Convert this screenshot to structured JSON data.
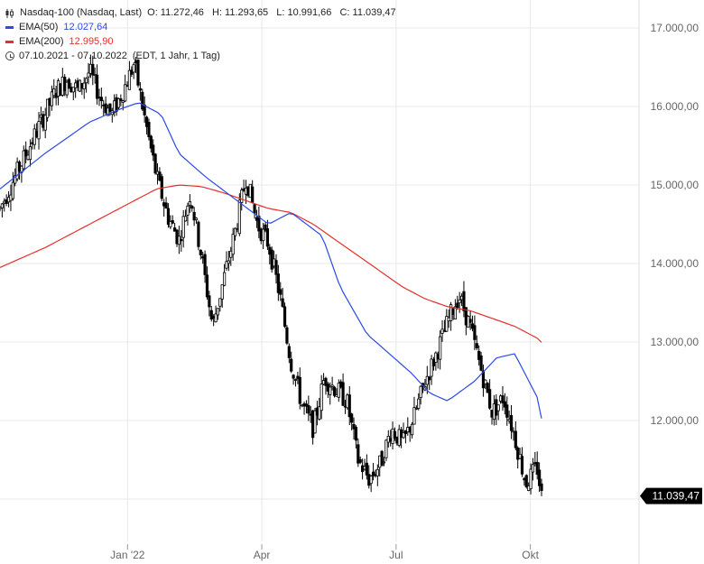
{
  "legend": {
    "title": "Nasdaq-100 (Nasdaq, Last)",
    "open": "O: 11.272,46",
    "high": "H: 11.293,65",
    "low": "L: 10.991,66",
    "close": "C: 11.039,47",
    "ema50_label": "EMA(50)",
    "ema50_value": "12.027,64",
    "ema200_label": "EMA(200)",
    "ema200_value": "12.995,90",
    "range": "07.10.2021 - 07.10.2022",
    "range_info": "(EDT, 1 Jahr, 1 Tag)"
  },
  "colors": {
    "ema50": "#2b4ae6",
    "ema200": "#e4302b",
    "candle": "#000000",
    "grid": "#e8e8e8",
    "badge": "#000000"
  },
  "chart_data": {
    "type": "line",
    "title": "Nasdaq-100 (Nasdaq, Last)",
    "x_ticks": [
      "Jan '22",
      "Apr",
      "Jul",
      "Okt"
    ],
    "x_tick_months": [
      3,
      6,
      9,
      12
    ],
    "y_ticks": [
      11000,
      12000,
      13000,
      14000,
      15000,
      16000,
      17000
    ],
    "y_tick_labels": [
      "11.000,00",
      "12.000,00",
      "13.000,00",
      "14.000,00",
      "15.000,00",
      "16.000,00",
      "17.000,00"
    ],
    "ylim": [
      10650,
      17200
    ],
    "xlim_months": [
      0,
      12.5
    ],
    "last_value": 11039.47,
    "last_label": "11.039,47",
    "series": [
      {
        "name": "Nasdaq-100",
        "kind": "candles",
        "months": [
          0.0,
          0.25,
          0.5,
          0.75,
          1.0,
          1.25,
          1.5,
          1.75,
          2.0,
          2.25,
          2.5,
          2.75,
          3.0,
          3.25,
          3.5,
          3.75,
          4.0,
          4.25,
          4.5,
          4.75,
          5.0,
          5.25,
          5.5,
          5.75,
          6.0,
          6.25,
          6.5,
          6.75,
          7.0,
          7.25,
          7.5,
          7.75,
          8.0,
          8.25,
          8.5,
          8.75,
          9.0,
          9.25,
          9.5,
          9.75,
          10.0,
          10.25,
          10.5,
          10.75,
          11.0,
          11.25,
          11.5,
          11.75,
          12.0,
          12.1
        ],
        "values": [
          14700,
          15000,
          15300,
          15600,
          15900,
          16200,
          16350,
          16200,
          16450,
          16100,
          15900,
          16200,
          16550,
          15800,
          15100,
          14600,
          14300,
          14900,
          14100,
          13200,
          13800,
          14400,
          15100,
          14500,
          14250,
          13600,
          12750,
          12200,
          11900,
          12550,
          12400,
          12250,
          11500,
          11250,
          11450,
          11900,
          11700,
          12050,
          12500,
          12850,
          13250,
          13600,
          13200,
          12650,
          12100,
          12300,
          11800,
          11200,
          11400,
          11039
        ]
      },
      {
        "name": "EMA(50)",
        "months": [
          0.0,
          1.0,
          2.0,
          2.6,
          3.1,
          3.6,
          4.0,
          4.6,
          5.3,
          6.0,
          6.5,
          7.2,
          7.6,
          8.2,
          8.6,
          9.2,
          9.6,
          10.0,
          10.6,
          11.1,
          11.5,
          12.0,
          12.1
        ],
        "values": [
          14950,
          15400,
          15800,
          15950,
          16050,
          15900,
          15400,
          15100,
          14800,
          14500,
          14650,
          14350,
          13700,
          13100,
          12900,
          12600,
          12350,
          12250,
          12500,
          12800,
          12850,
          12300,
          12027
        ]
      },
      {
        "name": "EMA(200)",
        "months": [
          0.0,
          1.0,
          2.0,
          3.0,
          3.5,
          4.0,
          4.5,
          5.0,
          5.5,
          6.0,
          6.5,
          7.0,
          7.5,
          8.0,
          8.5,
          9.0,
          9.5,
          10.0,
          10.5,
          11.0,
          11.5,
          12.0,
          12.1
        ],
        "values": [
          13950,
          14200,
          14500,
          14800,
          14950,
          15000,
          14980,
          14900,
          14800,
          14700,
          14650,
          14500,
          14300,
          14100,
          13900,
          13700,
          13550,
          13450,
          13400,
          13300,
          13200,
          13050,
          12996
        ]
      }
    ]
  }
}
